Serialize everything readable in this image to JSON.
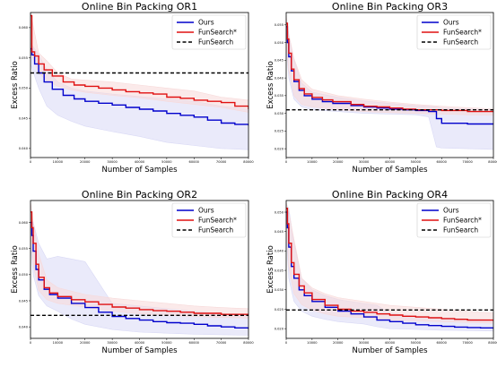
{
  "colors": {
    "ours": "#0000cc",
    "funsearch_star": "#e01010",
    "funsearch": "#000000",
    "ours_band": "#d9d9f5",
    "funsearch_star_band": "#f7d9d9"
  },
  "chart_data": [
    {
      "type": "line",
      "title": "Online Bin Packing OR1",
      "xlabel": "Number of Samples",
      "ylabel": "Excess Ratio",
      "xlim": [
        0,
        80000
      ],
      "ylim": [
        0.0385,
        0.0625
      ],
      "xticks": [
        "0",
        "10000",
        "20000",
        "30000",
        "40000",
        "50000",
        "60000",
        "70000",
        "80000"
      ],
      "yticks": [
        "0.040",
        "0.045",
        "0.050",
        "0.055",
        "0.060"
      ],
      "ytick_values": [
        0.04,
        0.045,
        0.05,
        0.055,
        0.06
      ],
      "legend": [
        "Ours",
        "FunSearch*",
        "FunSearch"
      ],
      "legend_position": "top-right",
      "series": [
        {
          "name": "Ours",
          "x": [
            0,
            500,
            1500,
            3000,
            5000,
            8000,
            12000,
            16000,
            20000,
            25000,
            30000,
            35000,
            40000,
            45000,
            50000,
            55000,
            60000,
            65000,
            70000,
            75000,
            80000
          ],
          "y": [
            0.0565,
            0.0555,
            0.054,
            0.0525,
            0.051,
            0.0498,
            0.0488,
            0.0482,
            0.0478,
            0.0475,
            0.0472,
            0.0468,
            0.0465,
            0.0462,
            0.0458,
            0.0455,
            0.0452,
            0.0447,
            0.0442,
            0.044,
            0.0438
          ]
        },
        {
          "name": "FunSearch*",
          "x": [
            0,
            500,
            1500,
            3000,
            5000,
            8000,
            12000,
            16000,
            20000,
            25000,
            30000,
            35000,
            40000,
            45000,
            50000,
            55000,
            60000,
            65000,
            70000,
            75000,
            80000
          ],
          "y": [
            0.062,
            0.056,
            0.0553,
            0.054,
            0.053,
            0.052,
            0.051,
            0.0505,
            0.0503,
            0.05,
            0.0497,
            0.0494,
            0.0492,
            0.049,
            0.0485,
            0.0483,
            0.048,
            0.0478,
            0.0476,
            0.047,
            0.0465
          ]
        },
        {
          "name": "FunSearch",
          "x": [
            0,
            80000
          ],
          "y": [
            0.0525,
            0.0525
          ]
        }
      ],
      "bands": [
        {
          "series": "Ours",
          "x": [
            0,
            3000,
            6000,
            10000,
            15000,
            20000,
            30000,
            40000,
            50000,
            60000,
            70000,
            80000
          ],
          "lower": [
            0.054,
            0.05,
            0.047,
            0.0455,
            0.0445,
            0.0437,
            0.0428,
            0.042,
            0.041,
            0.0405,
            0.04,
            0.0398
          ],
          "upper": [
            0.0575,
            0.0555,
            0.053,
            0.051,
            0.05,
            0.0495,
            0.049,
            0.0486,
            0.0482,
            0.0478,
            0.047,
            0.0465
          ]
        },
        {
          "series": "FunSearch*",
          "x": [
            0,
            3000,
            6000,
            10000,
            15000,
            20000,
            30000,
            40000,
            50000,
            60000,
            70000,
            80000
          ],
          "lower": [
            0.056,
            0.0525,
            0.0512,
            0.0503,
            0.0497,
            0.0493,
            0.0488,
            0.0484,
            0.0478,
            0.0473,
            0.0468,
            0.046
          ],
          "upper": [
            0.0625,
            0.0558,
            0.0545,
            0.0525,
            0.0515,
            0.0513,
            0.051,
            0.0505,
            0.05,
            0.0495,
            0.0485,
            0.048
          ]
        }
      ]
    },
    {
      "type": "line",
      "title": "Online Bin Packing OR3",
      "xlabel": "Number of Samples",
      "ylabel": "Excess Ratio",
      "xlim": [
        0,
        80000
      ],
      "ylim": [
        0.0175,
        0.0585
      ],
      "xticks": [
        "0",
        "10000",
        "20000",
        "30000",
        "40000",
        "50000",
        "60000",
        "70000",
        "80000"
      ],
      "yticks": [
        "0.020",
        "0.025",
        "0.030",
        "0.035",
        "0.040",
        "0.045",
        "0.050",
        "0.055"
      ],
      "ytick_values": [
        0.02,
        0.025,
        0.03,
        0.035,
        0.04,
        0.045,
        0.05,
        0.055
      ],
      "legend": [
        "Ours",
        "FunSearch*",
        "FunSearch"
      ],
      "legend_position": "top-right",
      "series": [
        {
          "name": "Ours",
          "x": [
            0,
            500,
            1000,
            2000,
            3000,
            5000,
            7000,
            10000,
            14000,
            18000,
            25000,
            30000,
            35000,
            40000,
            45000,
            50000,
            55000,
            58000,
            60000,
            70000,
            80000
          ],
          "y": [
            0.0545,
            0.05,
            0.046,
            0.042,
            0.039,
            0.0365,
            0.035,
            0.034,
            0.0333,
            0.0328,
            0.0322,
            0.0318,
            0.0315,
            0.0312,
            0.031,
            0.0308,
            0.0305,
            0.0285,
            0.0272,
            0.027,
            0.0268
          ]
        },
        {
          "name": "FunSearch*",
          "x": [
            0,
            500,
            1000,
            2000,
            3000,
            5000,
            7000,
            10000,
            14000,
            18000,
            25000,
            30000,
            35000,
            40000,
            45000,
            50000,
            60000,
            70000,
            80000
          ],
          "y": [
            0.0555,
            0.051,
            0.047,
            0.0425,
            0.0395,
            0.037,
            0.0355,
            0.0345,
            0.0338,
            0.0333,
            0.0325,
            0.032,
            0.0318,
            0.0315,
            0.0312,
            0.031,
            0.0308,
            0.0305,
            0.0303
          ]
        },
        {
          "name": "FunSearch",
          "x": [
            0,
            80000
          ],
          "y": [
            0.031,
            0.031
          ]
        }
      ],
      "bands": [
        {
          "series": "Ours",
          "x": [
            0,
            1000,
            3000,
            6000,
            10000,
            20000,
            30000,
            40000,
            50000,
            55000,
            58000,
            60000,
            70000,
            80000
          ],
          "lower": [
            0.049,
            0.04,
            0.034,
            0.0318,
            0.031,
            0.0305,
            0.03,
            0.0298,
            0.0296,
            0.029,
            0.0205,
            0.0202,
            0.02,
            0.0198
          ],
          "upper": [
            0.057,
            0.052,
            0.045,
            0.0385,
            0.036,
            0.0345,
            0.0335,
            0.0328,
            0.0322,
            0.032,
            0.0318,
            0.0315,
            0.0313,
            0.031
          ]
        },
        {
          "series": "FunSearch*",
          "x": [
            0,
            1000,
            3000,
            6000,
            10000,
            20000,
            30000,
            40000,
            50000,
            60000,
            70000,
            80000
          ],
          "lower": [
            0.05,
            0.042,
            0.035,
            0.0325,
            0.0318,
            0.031,
            0.0305,
            0.0302,
            0.03,
            0.0298,
            0.0296,
            0.0295
          ],
          "upper": [
            0.0575,
            0.0525,
            0.0455,
            0.0395,
            0.0368,
            0.035,
            0.034,
            0.0332,
            0.0325,
            0.032,
            0.0316,
            0.0313
          ]
        }
      ]
    },
    {
      "type": "line",
      "title": "Online Bin Packing OR2",
      "xlabel": "Number of Samples",
      "ylabel": "Excess Ratio",
      "xlim": [
        0,
        80000
      ],
      "ylim": [
        0.0378,
        0.0642
      ],
      "xticks": [
        "0",
        "10000",
        "20000",
        "30000",
        "40000",
        "50000",
        "60000",
        "70000",
        "80000"
      ],
      "yticks": [
        "0.040",
        "0.045",
        "0.050",
        "0.055",
        "0.060"
      ],
      "ytick_values": [
        0.04,
        0.045,
        0.05,
        0.055,
        0.06
      ],
      "legend": [
        "Ours",
        "FunSearch*",
        "FunSearch"
      ],
      "legend_position": "top-right",
      "series": [
        {
          "name": "Ours",
          "x": [
            0,
            500,
            1000,
            2000,
            3000,
            5000,
            7000,
            10000,
            15000,
            20000,
            25000,
            30000,
            35000,
            40000,
            45000,
            50000,
            55000,
            60000,
            65000,
            70000,
            75000,
            80000
          ],
          "y": [
            0.06,
            0.0575,
            0.0545,
            0.051,
            0.049,
            0.0472,
            0.0462,
            0.0455,
            0.0445,
            0.0437,
            0.0428,
            0.042,
            0.0416,
            0.0413,
            0.041,
            0.0408,
            0.0407,
            0.0405,
            0.0402,
            0.04,
            0.0398,
            0.0396
          ]
        },
        {
          "name": "FunSearch*",
          "x": [
            0,
            500,
            1000,
            2000,
            3000,
            5000,
            7000,
            10000,
            15000,
            20000,
            25000,
            30000,
            35000,
            40000,
            45000,
            50000,
            55000,
            60000,
            70000,
            80000
          ],
          "y": [
            0.062,
            0.059,
            0.056,
            0.052,
            0.0495,
            0.0475,
            0.0465,
            0.0458,
            0.0452,
            0.0448,
            0.0443,
            0.0438,
            0.0436,
            0.0433,
            0.0431,
            0.043,
            0.0428,
            0.0426,
            0.0424,
            0.0422
          ]
        },
        {
          "name": "FunSearch",
          "x": [
            0,
            80000
          ],
          "y": [
            0.0422,
            0.0422
          ]
        }
      ],
      "bands": [
        {
          "series": "Ours",
          "x": [
            0,
            1000,
            3000,
            6000,
            10000,
            15000,
            20000,
            30000,
            40000,
            50000,
            60000,
            70000,
            80000
          ],
          "lower": [
            0.056,
            0.05,
            0.046,
            0.044,
            0.043,
            0.0415,
            0.0405,
            0.0395,
            0.039,
            0.0388,
            0.0386,
            0.0385,
            0.0384
          ],
          "upper": [
            0.062,
            0.06,
            0.056,
            0.053,
            0.0535,
            0.053,
            0.0525,
            0.0445,
            0.044,
            0.0435,
            0.043,
            0.0425,
            0.0422
          ]
        },
        {
          "series": "FunSearch*",
          "x": [
            0,
            1000,
            3000,
            6000,
            10000,
            20000,
            30000,
            40000,
            50000,
            60000,
            70000,
            80000
          ],
          "lower": [
            0.058,
            0.052,
            0.047,
            0.0452,
            0.0445,
            0.0438,
            0.043,
            0.0425,
            0.0422,
            0.042,
            0.0418,
            0.0417
          ],
          "upper": [
            0.064,
            0.06,
            0.054,
            0.049,
            0.0475,
            0.0462,
            0.0455,
            0.045,
            0.0445,
            0.044,
            0.0437,
            0.0435
          ]
        }
      ]
    },
    {
      "type": "line",
      "title": "Online Bin Packing OR4",
      "xlabel": "Number of Samples",
      "ylabel": "Excess Ratio",
      "xlim": [
        0,
        80000
      ],
      "ylim": [
        0.0175,
        0.053
      ],
      "xticks": [
        "0",
        "10000",
        "20000",
        "30000",
        "40000",
        "50000",
        "60000",
        "70000",
        "80000"
      ],
      "yticks": [
        "0.020",
        "0.025",
        "0.030",
        "0.035",
        "0.040",
        "0.045",
        "0.050"
      ],
      "ytick_values": [
        0.02,
        0.025,
        0.03,
        0.035,
        0.04,
        0.045,
        0.05
      ],
      "legend": [
        "Ours",
        "FunSearch*",
        "FunSearch"
      ],
      "legend_position": "top-right",
      "series": [
        {
          "name": "Ours",
          "x": [
            0,
            500,
            1000,
            2000,
            3000,
            5000,
            7000,
            10000,
            15000,
            20000,
            25000,
            30000,
            35000,
            40000,
            45000,
            50000,
            55000,
            60000,
            65000,
            70000,
            75000,
            80000
          ],
          "y": [
            0.05,
            0.046,
            0.041,
            0.036,
            0.033,
            0.03,
            0.0285,
            0.027,
            0.0255,
            0.0245,
            0.0238,
            0.023,
            0.0222,
            0.0218,
            0.0214,
            0.021,
            0.0208,
            0.0206,
            0.0204,
            0.0203,
            0.0202,
            0.02
          ]
        },
        {
          "name": "FunSearch*",
          "x": [
            0,
            500,
            1000,
            2000,
            3000,
            5000,
            7000,
            10000,
            15000,
            20000,
            25000,
            30000,
            35000,
            40000,
            45000,
            50000,
            55000,
            60000,
            65000,
            70000,
            80000
          ],
          "y": [
            0.051,
            0.047,
            0.042,
            0.037,
            0.034,
            0.031,
            0.0292,
            0.0275,
            0.026,
            0.025,
            0.0245,
            0.0242,
            0.0238,
            0.0235,
            0.0232,
            0.023,
            0.0228,
            0.0226,
            0.0224,
            0.0222,
            0.022
          ]
        },
        {
          "name": "FunSearch",
          "x": [
            0,
            80000
          ],
          "y": [
            0.0248,
            0.0248
          ]
        }
      ],
      "bands": [
        {
          "series": "Ours",
          "x": [
            0,
            1000,
            3000,
            6000,
            10000,
            15000,
            20000,
            30000,
            35000,
            40000,
            50000,
            60000,
            70000,
            80000
          ],
          "lower": [
            0.045,
            0.033,
            0.027,
            0.0245,
            0.0232,
            0.0224,
            0.0218,
            0.0212,
            0.0205,
            0.02,
            0.0198,
            0.0196,
            0.0195,
            0.0194
          ],
          "upper": [
            0.052,
            0.051,
            0.042,
            0.033,
            0.03,
            0.0285,
            0.0275,
            0.0265,
            0.026,
            0.024,
            0.0232,
            0.0228,
            0.0225,
            0.0222
          ]
        },
        {
          "series": "FunSearch*",
          "x": [
            0,
            1000,
            3000,
            6000,
            10000,
            15000,
            20000,
            30000,
            40000,
            50000,
            60000,
            70000,
            80000
          ],
          "lower": [
            0.047,
            0.036,
            0.029,
            0.0262,
            0.0248,
            0.0238,
            0.0232,
            0.0228,
            0.0222,
            0.022,
            0.0218,
            0.0216,
            0.0214
          ],
          "upper": [
            0.0525,
            0.05,
            0.043,
            0.033,
            0.0305,
            0.029,
            0.028,
            0.027,
            0.026,
            0.0255,
            0.025,
            0.0245,
            0.024
          ]
        }
      ]
    }
  ]
}
